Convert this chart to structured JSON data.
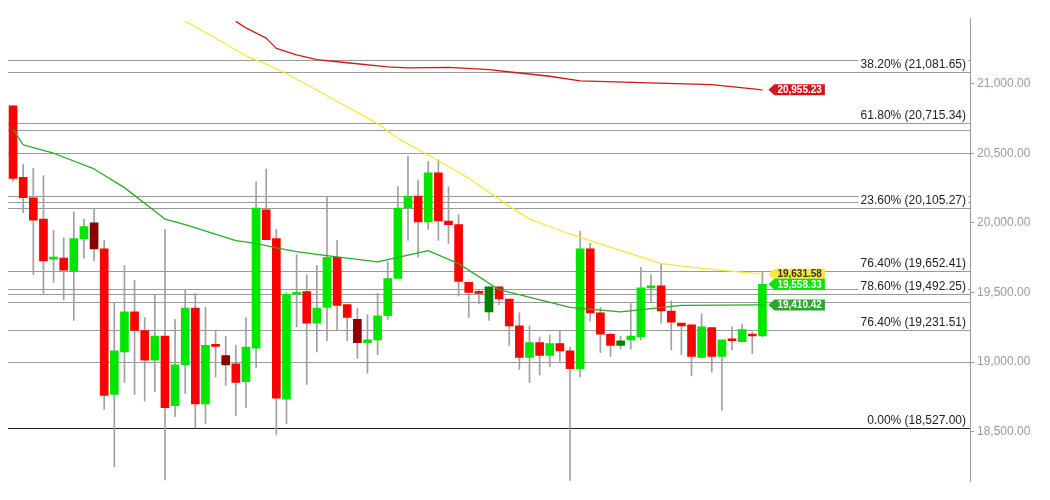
{
  "chart_data": {
    "type": "candlestick",
    "categories": [
      null,
      null,
      null,
      null,
      null,
      null,
      null,
      null,
      null,
      null,
      null,
      null,
      null,
      null,
      null,
      null,
      null,
      null,
      null,
      null,
      null,
      null,
      null,
      null,
      null,
      null,
      null,
      null,
      null,
      null,
      null,
      null,
      null,
      null,
      null,
      null,
      null,
      null,
      null,
      null,
      null,
      null,
      null,
      null,
      null,
      null,
      null,
      null,
      null,
      null,
      null,
      null,
      null,
      null,
      null,
      null,
      null,
      null,
      null,
      null,
      null,
      null,
      null,
      null,
      null,
      null,
      null,
      null,
      null,
      null,
      null,
      null,
      null,
      null,
      null,
      null,
      null,
      null,
      null,
      null,
      null,
      null,
      null,
      null,
      null,
      null,
      null,
      null,
      null,
      null,
      null,
      null,
      null,
      null,
      null
    ],
    "ohlc": [
      [
        20840,
        20840,
        20300,
        20320
      ],
      [
        20327,
        20420,
        20073,
        20180
      ],
      [
        20180,
        20393,
        19627,
        20020
      ],
      [
        20027,
        20340,
        19493,
        19727
      ],
      [
        19740,
        19947,
        19573,
        19745
      ],
      [
        19747,
        19893,
        19447,
        19660
      ],
      [
        19653,
        20080,
        19300,
        19887
      ],
      [
        19887,
        20027,
        19747,
        19973
      ],
      [
        20000,
        20100,
        19727,
        19813
      ],
      [
        19813,
        19873,
        18660,
        18760
      ],
      [
        18767,
        19427,
        18247,
        19080
      ],
      [
        19073,
        19693,
        18853,
        19360
      ],
      [
        19360,
        19587,
        18767,
        19227
      ],
      [
        19227,
        19320,
        18720,
        19013
      ],
      [
        19013,
        19487,
        18787,
        19187
      ],
      [
        19187,
        19953,
        18153,
        18673
      ],
      [
        18687,
        19307,
        18607,
        18980
      ],
      [
        18980,
        19520,
        18773,
        19387
      ],
      [
        19387,
        19493,
        18527,
        18700
      ],
      [
        18700,
        19393,
        18560,
        19120
      ],
      [
        19120,
        19227,
        18893,
        19113
      ],
      [
        19047,
        19187,
        18833,
        18980
      ],
      [
        18987,
        19120,
        18613,
        18853
      ],
      [
        18860,
        19320,
        18673,
        19107
      ],
      [
        19100,
        20293,
        18960,
        20107
      ],
      [
        20093,
        20387,
        19880,
        19880
      ],
      [
        19887,
        19953,
        18480,
        18740
      ],
      [
        18733,
        19500,
        18560,
        19487
      ],
      [
        19487,
        19773,
        19253,
        19500
      ],
      [
        19507,
        19627,
        18840,
        19280
      ],
      [
        19280,
        19693,
        19073,
        19387
      ],
      [
        19393,
        20187,
        19153,
        19753
      ],
      [
        19753,
        19873,
        19233,
        19407
      ],
      [
        19413,
        19413,
        19153,
        19320
      ],
      [
        19307,
        19387,
        19027,
        19140
      ],
      [
        19140,
        19340,
        18920,
        19160
      ],
      [
        19160,
        19493,
        19053,
        19333
      ],
      [
        19333,
        19720,
        19307,
        19600
      ],
      [
        19600,
        20260,
        19600,
        20107
      ],
      [
        20107,
        20480,
        19873,
        20193
      ],
      [
        20193,
        20307,
        19753,
        20007
      ],
      [
        20007,
        20440,
        19953,
        20360
      ],
      [
        20360,
        20453,
        19873,
        20013
      ],
      [
        20013,
        20260,
        19853,
        19987
      ],
      [
        19987,
        20060,
        19473,
        19580
      ],
      [
        19573,
        19573,
        19320,
        19500
      ],
      [
        19500,
        19520,
        19420,
        19493
      ],
      [
        19360,
        19540,
        19300,
        19540
      ],
      [
        19540,
        19540,
        19413,
        19453
      ],
      [
        19453,
        19453,
        19120,
        19260
      ],
      [
        19260,
        19353,
        18947,
        19033
      ],
      [
        19033,
        19260,
        18853,
        19140
      ],
      [
        19140,
        19180,
        18907,
        19047
      ],
      [
        19047,
        19193,
        18967,
        19133
      ],
      [
        19133,
        19227,
        19007,
        19080
      ],
      [
        19080,
        19107,
        18150,
        18953
      ],
      [
        18953,
        19940,
        18893,
        19813
      ],
      [
        19813,
        19853,
        19293,
        19353
      ],
      [
        19353,
        19393,
        19067,
        19200
      ],
      [
        19200,
        19207,
        19040,
        19120
      ],
      [
        19120,
        19187,
        19093,
        19153
      ],
      [
        19160,
        19420,
        19093,
        19187
      ],
      [
        19180,
        19680,
        19160,
        19533
      ],
      [
        19533,
        19627,
        19433,
        19547
      ],
      [
        19547,
        19707,
        19280,
        19367
      ],
      [
        19367,
        19440,
        19087,
        19287
      ],
      [
        19280,
        19280,
        19053,
        19260
      ],
      [
        19267,
        19267,
        18900,
        19040
      ],
      [
        19033,
        19347,
        19033,
        19253
      ],
      [
        19247,
        19247,
        18927,
        19040
      ],
      [
        19040,
        19160,
        18653,
        19160
      ],
      [
        19167,
        19253,
        19087,
        19153
      ],
      [
        19147,
        19273,
        19147,
        19233
      ],
      [
        19193,
        19213,
        19060,
        19187
      ],
      [
        19187,
        19653,
        19180,
        19558.33
      ],
      null,
      null,
      null,
      null,
      null,
      null,
      null,
      null,
      null,
      null,
      null,
      null,
      null,
      null,
      null,
      null,
      null,
      null,
      null,
      null
    ],
    "value_labels": [
      null,
      null,
      null,
      null,
      null,
      null,
      null,
      null,
      null,
      null,
      null,
      null,
      null,
      null,
      null,
      null,
      null,
      null,
      null,
      null,
      null,
      null,
      null,
      null,
      null,
      null,
      null,
      null,
      null,
      null,
      null,
      null,
      null,
      null,
      null,
      null,
      null,
      null,
      null,
      null,
      null,
      null,
      null,
      null,
      null,
      null,
      null,
      null,
      null,
      null,
      null,
      null,
      null,
      null,
      null,
      null,
      null,
      null,
      null,
      null,
      null,
      null,
      null,
      null,
      null,
      null,
      null,
      null,
      null,
      null,
      null,
      null,
      null,
      null,
      "19,558.33",
      null,
      null,
      null,
      null,
      null,
      null,
      null,
      null,
      null,
      null,
      null,
      null,
      null,
      null,
      null,
      null,
      null,
      null,
      null,
      null
    ],
    "colors": [
      "#ff0000",
      "#ff0000",
      "#ff0000",
      "#ff0000",
      "#00e600",
      "#ff0000",
      "#00e600",
      "#00e600",
      "#8b0000",
      "#ff0000",
      "#00e600",
      "#00e600",
      "#ff0000",
      "#ff0000",
      "#00e600",
      "#ff0000",
      "#00e600",
      "#00e600",
      "#ff0000",
      "#00e600",
      "#ff0000",
      "#8b0000",
      "#ff0000",
      "#00e600",
      "#00e600",
      "#ff0000",
      "#ff0000",
      "#00e600",
      "#00e600",
      "#ff0000",
      "#00e600",
      "#00e600",
      "#ff0000",
      "#ff0000",
      "#8b0000",
      "#00e600",
      "#00e600",
      "#00e600",
      "#00e600",
      "#00e600",
      "#ff0000",
      "#00e600",
      "#ff0000",
      "#ff0000",
      "#ff0000",
      "#ff0000",
      "#ff0000",
      "#008000",
      "#ff0000",
      "#ff0000",
      "#ff0000",
      "#00e600",
      "#ff0000",
      "#00e600",
      "#ff0000",
      "#ff0000",
      "#00e600",
      "#ff0000",
      "#ff0000",
      "#ff0000",
      "#008000",
      "#00e600",
      "#00e600",
      "#00e600",
      "#ff0000",
      "#ff0000",
      "#ff0000",
      "#ff0000",
      "#00e600",
      "#ff0000",
      "#00e600",
      "#ff0000",
      "#00e600",
      "#ff0000",
      "#00e600",
      null,
      null,
      null,
      null,
      null,
      null,
      null,
      null,
      null,
      null,
      null,
      null,
      null,
      null,
      null,
      null,
      null,
      null,
      null,
      null
    ],
    "series": [
      {
        "type": "line",
        "color": "#d01818",
        "values": [
          null,
          null,
          null,
          null,
          null,
          null,
          null,
          null,
          null,
          null,
          null,
          null,
          null,
          null,
          null,
          null,
          null,
          null,
          null,
          null,
          null,
          null,
          21447,
          21400,
          null,
          21327,
          21253,
          null,
          21207,
          null,
          21173,
          null,
          null,
          21150,
          null,
          null,
          null,
          21120,
          null,
          21113,
          null,
          null,
          null,
          21117,
          null,
          null,
          null,
          21100,
          null,
          null,
          null,
          null,
          null,
          21053,
          null,
          null,
          21020,
          null,
          null,
          null,
          null,
          null,
          21007,
          null,
          null,
          null,
          null,
          null,
          null,
          20993,
          null,
          null,
          null,
          null,
          20955.23,
          null,
          null,
          null,
          null,
          null,
          null,
          null,
          null,
          null,
          null,
          null,
          null,
          null,
          null,
          null,
          null,
          null,
          null,
          null,
          null
        ],
        "value_labels": [
          null,
          null,
          null,
          null,
          null,
          null,
          null,
          null,
          null,
          null,
          null,
          null,
          null,
          null,
          null,
          null,
          null,
          null,
          null,
          null,
          null,
          null,
          null,
          null,
          null,
          null,
          null,
          null,
          null,
          null,
          null,
          null,
          null,
          null,
          null,
          null,
          null,
          null,
          null,
          null,
          null,
          null,
          null,
          null,
          null,
          null,
          null,
          null,
          null,
          null,
          null,
          null,
          null,
          null,
          null,
          null,
          null,
          null,
          null,
          null,
          null,
          null,
          null,
          null,
          null,
          null,
          null,
          null,
          null,
          null,
          null,
          null,
          null,
          null,
          "20,955.23",
          null,
          null,
          null,
          null,
          null,
          null,
          null,
          null,
          null,
          null,
          null,
          null,
          null,
          null,
          null,
          null,
          null,
          null,
          null,
          null
        ]
      },
      {
        "type": "line",
        "color": "#f5e83a",
        "values": [
          null,
          null,
          null,
          null,
          null,
          null,
          null,
          null,
          null,
          null,
          null,
          null,
          null,
          null,
          null,
          null,
          null,
          21447,
          null,
          21367,
          null,
          null,
          null,
          21200,
          null,
          21140,
          null,
          21073,
          null,
          null,
          null,
          20913,
          null,
          null,
          null,
          null,
          20713,
          null,
          20607,
          null,
          null,
          20487,
          null,
          null,
          null,
          20320,
          null,
          null,
          null,
          20120,
          null,
          20027,
          null,
          null,
          null,
          19920,
          null,
          19873,
          null,
          null,
          null,
          null,
          null,
          null,
          19707,
          null,
          null,
          null,
          19673,
          null,
          null,
          null,
          null,
          null,
          19631.58,
          null,
          null,
          null,
          null,
          null,
          null,
          null,
          null,
          null,
          null,
          null,
          null,
          null,
          null,
          null,
          null,
          null,
          null,
          null,
          null
        ],
        "value_labels": [
          null,
          null,
          null,
          null,
          null,
          null,
          null,
          null,
          null,
          null,
          null,
          null,
          null,
          null,
          null,
          null,
          null,
          null,
          null,
          null,
          null,
          null,
          null,
          null,
          null,
          null,
          null,
          null,
          null,
          null,
          null,
          null,
          null,
          null,
          null,
          null,
          null,
          null,
          null,
          null,
          null,
          null,
          null,
          null,
          null,
          null,
          null,
          null,
          null,
          null,
          null,
          null,
          null,
          null,
          null,
          null,
          null,
          null,
          null,
          null,
          null,
          null,
          null,
          null,
          null,
          null,
          null,
          null,
          null,
          null,
          null,
          null,
          null,
          null,
          "19,631.58",
          null,
          null,
          null,
          null,
          null,
          null,
          null,
          null,
          null,
          null,
          null,
          null,
          null,
          null,
          null,
          null,
          null,
          null,
          null,
          null
        ]
      },
      {
        "type": "line",
        "color": "#2aa82a",
        "values": [
          20673,
          20560,
          null,
          null,
          20500,
          null,
          null,
          null,
          20387,
          null,
          null,
          20253,
          null,
          null,
          null,
          20027,
          null,
          19987,
          null,
          null,
          null,
          null,
          19873,
          null,
          19853,
          null,
          19820,
          null,
          19793,
          null,
          19773,
          null,
          null,
          null,
          null,
          null,
          19720,
          null,
          null,
          null,
          null,
          19800,
          null,
          null,
          19707,
          null,
          null,
          null,
          19520,
          null,
          null,
          null,
          null,
          null,
          null,
          19393,
          null,
          null,
          null,
          null,
          19360,
          null,
          null,
          null,
          null,
          null,
          19407,
          null,
          null,
          null,
          null,
          null,
          null,
          null,
          19410.42,
          null,
          null,
          null,
          null,
          null,
          null,
          null,
          null,
          null,
          null,
          null,
          null,
          null,
          null,
          null,
          null,
          null,
          null,
          null,
          null
        ],
        "value_labels": [
          null,
          null,
          null,
          null,
          null,
          null,
          null,
          null,
          null,
          null,
          null,
          null,
          null,
          null,
          null,
          null,
          null,
          null,
          null,
          null,
          null,
          null,
          null,
          null,
          null,
          null,
          null,
          null,
          null,
          null,
          null,
          null,
          null,
          null,
          null,
          null,
          null,
          null,
          null,
          null,
          null,
          null,
          null,
          null,
          null,
          null,
          null,
          null,
          null,
          null,
          null,
          null,
          null,
          null,
          null,
          null,
          null,
          null,
          null,
          null,
          null,
          null,
          null,
          null,
          null,
          null,
          null,
          null,
          null,
          null,
          null,
          null,
          null,
          null,
          "19,410.42",
          null,
          null,
          null,
          null,
          null,
          null,
          null,
          null,
          null,
          null,
          null,
          null,
          null,
          null,
          null,
          null,
          null,
          null,
          null,
          null
        ]
      }
    ],
    "ylim": [
      18140,
      21470
    ],
    "yticks": [
      {
        "value": 18500,
        "label": "18,500.00"
      },
      {
        "value": 19000,
        "label": "19,000.00"
      },
      {
        "value": 19500,
        "label": "19,500.00"
      },
      {
        "value": 20000,
        "label": "20,000.00"
      },
      {
        "value": 20500,
        "label": "20,500.00"
      },
      {
        "value": 21000,
        "label": "21,000.00"
      }
    ],
    "ref_lines": [
      {
        "axis": "y",
        "value": 21081.65,
        "label": "38.20% (21,081.65)",
        "color": "#999999"
      },
      {
        "axis": "y",
        "value": 20715.34,
        "label": "61.80% (20,715.34)",
        "color": "#999999"
      },
      {
        "axis": "y",
        "value": 20105.27,
        "label": "23.60% (20,105.27)",
        "color": "#999999"
      },
      {
        "axis": "y",
        "value": 19652.41,
        "label": "76.40% (19,652.41)",
        "color": "#999999"
      },
      {
        "axis": "y",
        "value": 19492.25,
        "label": "78.60% (19,492.25)",
        "color": "#999999"
      },
      {
        "axis": "y",
        "value": 19231.51,
        "label": "76.40% (19,231.51)",
        "color": "#999999"
      },
      {
        "axis": "y",
        "value": 18527,
        "label": "0.00% (18,527.00)",
        "color": "#222222"
      },
      {
        "axis": "y",
        "value": 21173,
        "color": "#999999"
      },
      {
        "axis": "y",
        "value": 20667,
        "color": "#999999"
      },
      {
        "axis": "y",
        "value": 20500,
        "color": "#999999"
      },
      {
        "axis": "y",
        "value": 20193,
        "color": "#999999"
      },
      {
        "axis": "y",
        "value": 20153,
        "color": "#999999"
      },
      {
        "axis": "y",
        "value": 19527,
        "color": "#999999"
      },
      {
        "axis": "y",
        "value": 19433,
        "color": "#999999"
      },
      {
        "axis": "y",
        "value": 19000,
        "color": "#999999"
      }
    ],
    "grid": false,
    "legend": false
  }
}
